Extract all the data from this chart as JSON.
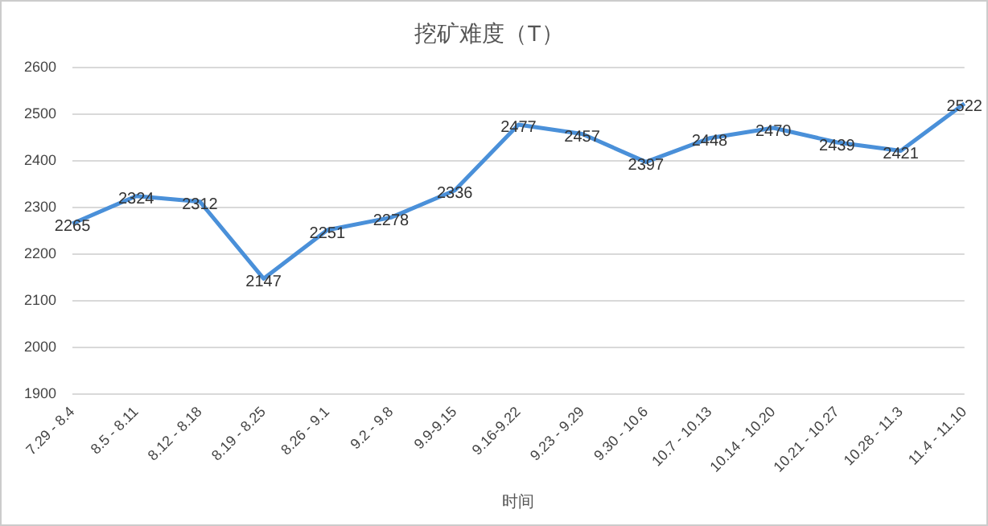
{
  "chart_data": {
    "type": "line",
    "title": "挖矿难度（T）",
    "xlabel": "时间",
    "categories": [
      "7.29 - 8.4",
      "8.5 - 8.11",
      "8.12 - 8.18",
      "8.19 - 8.25",
      "8.26 - 9.1",
      "9.2 - 9.8",
      "9.9-9.15",
      "9.16-9.22",
      "9.23 - 9.29",
      "9.30 - 10.6",
      "10.7 - 10.13",
      "10.14 - 10.20",
      "10.21 - 10.27",
      "10.28 - 11.3",
      "11.4 - 11.10"
    ],
    "series": [
      {
        "color": "#4a90d9",
        "values": [
          2265,
          2324,
          2312,
          2147,
          2251,
          2278,
          2336,
          2477,
          2457,
          2397,
          2448,
          2470,
          2439,
          2421,
          2522
        ]
      }
    ],
    "ylim": [
      1900,
      2600
    ],
    "yticks": [
      1900,
      2000,
      2100,
      2200,
      2300,
      2400,
      2500,
      2600
    ],
    "grid": "y",
    "legend": false,
    "marker": "none",
    "line_style": "solid",
    "data_labels": true
  }
}
